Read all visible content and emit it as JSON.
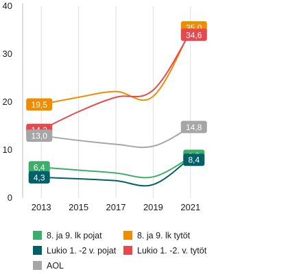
{
  "chart_data": {
    "type": "line",
    "title": "",
    "xlabel": "",
    "ylabel": "",
    "x_ticks": [
      "2013",
      "2015",
      "2017",
      "2019",
      "2021"
    ],
    "y_ticks": [
      "0",
      "10",
      "20",
      "30",
      "40"
    ],
    "xlim": [
      2012,
      2022
    ],
    "ylim": [
      0,
      40
    ],
    "grid": "vertical",
    "legend_position": "bottom",
    "series": [
      {
        "name": "8. ja 9. lk pojat",
        "color": "#3dae6a",
        "points": [
          [
            2013,
            6.4
          ],
          [
            2015,
            5.8
          ],
          [
            2017,
            5.2
          ],
          [
            2019,
            4.4
          ],
          [
            2021,
            8.5
          ]
        ],
        "label_start": "6,4",
        "label_end": "8,5"
      },
      {
        "name": "8. ja 9. lk tytöt",
        "color": "#f08c00",
        "points": [
          [
            2013,
            19.5
          ],
          [
            2015,
            21.0
          ],
          [
            2017,
            22.2
          ],
          [
            2019,
            21.2
          ],
          [
            2021,
            35.0
          ]
        ],
        "label_start": "19,5",
        "label_end": "35,0"
      },
      {
        "name": "Lukio 1. -2 v. pojat",
        "color": "#006068",
        "points": [
          [
            2013,
            4.3
          ],
          [
            2015,
            4.0
          ],
          [
            2017,
            3.6
          ],
          [
            2019,
            2.8
          ],
          [
            2021,
            8.4
          ]
        ],
        "label_start": "4,3",
        "label_end": "8,4"
      },
      {
        "name": "Lukio 1. -2. v. tytöt",
        "color": "#e5484d",
        "points": [
          [
            2013,
            14.2
          ],
          [
            2015,
            18.0
          ],
          [
            2017,
            21.0
          ],
          [
            2019,
            22.5
          ],
          [
            2021,
            34.6
          ]
        ],
        "label_start": "14,2",
        "label_end": "34,6"
      },
      {
        "name": "AOL",
        "color": "#a6a6a6",
        "points": [
          [
            2013,
            13.0
          ],
          [
            2015,
            12.0
          ],
          [
            2017,
            11.2
          ],
          [
            2019,
            10.8
          ],
          [
            2021,
            14.8
          ]
        ],
        "label_start": "13,0",
        "label_end": "14,8"
      }
    ]
  }
}
